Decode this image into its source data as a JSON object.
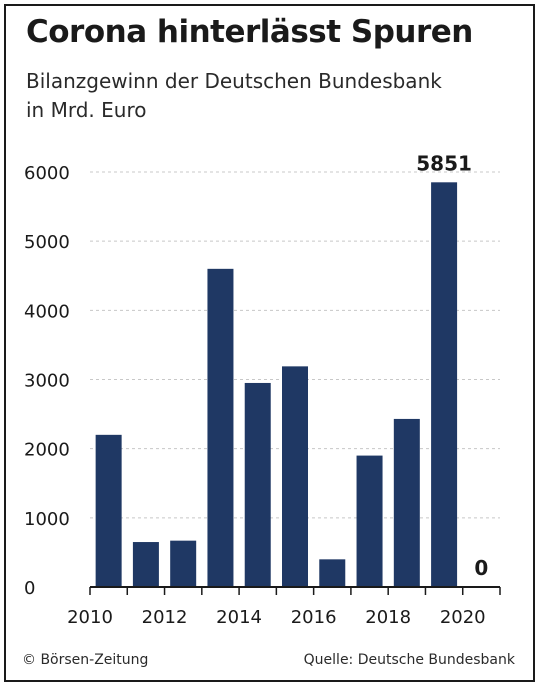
{
  "header": {
    "title": "Corona hinterlässt Spuren",
    "subtitle_line1": "Bilanzgewinn der Deutschen Bundesbank",
    "subtitle_line2": "in Mrd. Euro"
  },
  "footer": {
    "left": "© Börsen-Zeitung",
    "right": "Quelle: Deutsche Bundesbank"
  },
  "colors": {
    "bar": "#1f3864",
    "grid": "#c8c8c8",
    "axis": "#1a1a1a"
  },
  "chart_data": {
    "type": "bar",
    "title": "Corona hinterlässt Spuren",
    "subtitle": "Bilanzgewinn der Deutschen Bundesbank in Mrd. Euro",
    "categories": [
      "2010",
      "2011",
      "2012",
      "2013",
      "2014",
      "2015",
      "2016",
      "2017",
      "2018",
      "2019",
      "2020"
    ],
    "values": [
      2200,
      650,
      670,
      4600,
      2950,
      3190,
      400,
      1900,
      2430,
      5851,
      0
    ],
    "x_tick_labels": [
      "2010",
      "2012",
      "2014",
      "2016",
      "2018",
      "2020"
    ],
    "y_ticks": [
      0,
      1000,
      2000,
      3000,
      4000,
      5000,
      6000
    ],
    "ylim": [
      0,
      6000
    ],
    "data_labels": [
      {
        "category": "2019",
        "text": "5851"
      },
      {
        "category": "2020",
        "text": "0"
      }
    ],
    "grid": true,
    "xlabel": "",
    "ylabel": ""
  }
}
